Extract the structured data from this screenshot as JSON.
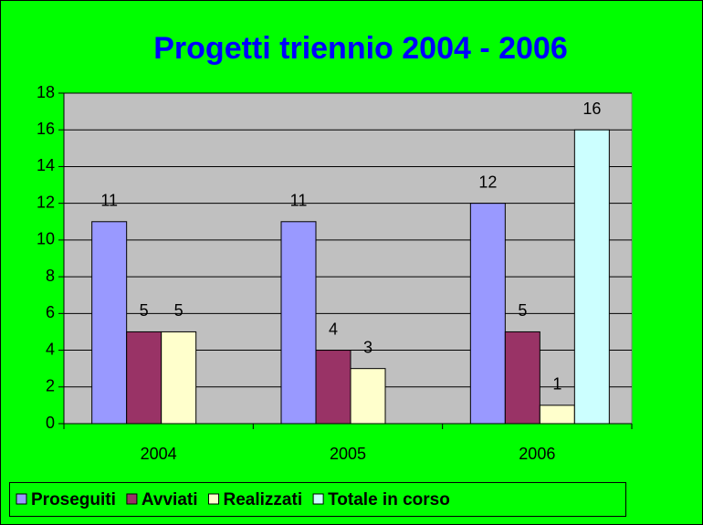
{
  "chart_data": {
    "type": "bar",
    "title": "Progetti triennio 2004 - 2006",
    "categories": [
      "2004",
      "2005",
      "2006"
    ],
    "series": [
      {
        "name": "Proseguiti",
        "color": "#9999ff",
        "values": [
          11,
          11,
          12
        ]
      },
      {
        "name": "Avviati",
        "color": "#993366",
        "values": [
          5,
          4,
          5
        ]
      },
      {
        "name": "Realizzati",
        "color": "#ffffcc",
        "values": [
          5,
          3,
          1
        ]
      },
      {
        "name": "Totale in corso",
        "color": "#ccffff",
        "values": [
          null,
          null,
          16
        ]
      }
    ],
    "ylim": [
      0,
      18
    ],
    "yticks": [
      0,
      2,
      4,
      6,
      8,
      10,
      12,
      14,
      16,
      18
    ],
    "grid": true,
    "legend": "bottom"
  }
}
